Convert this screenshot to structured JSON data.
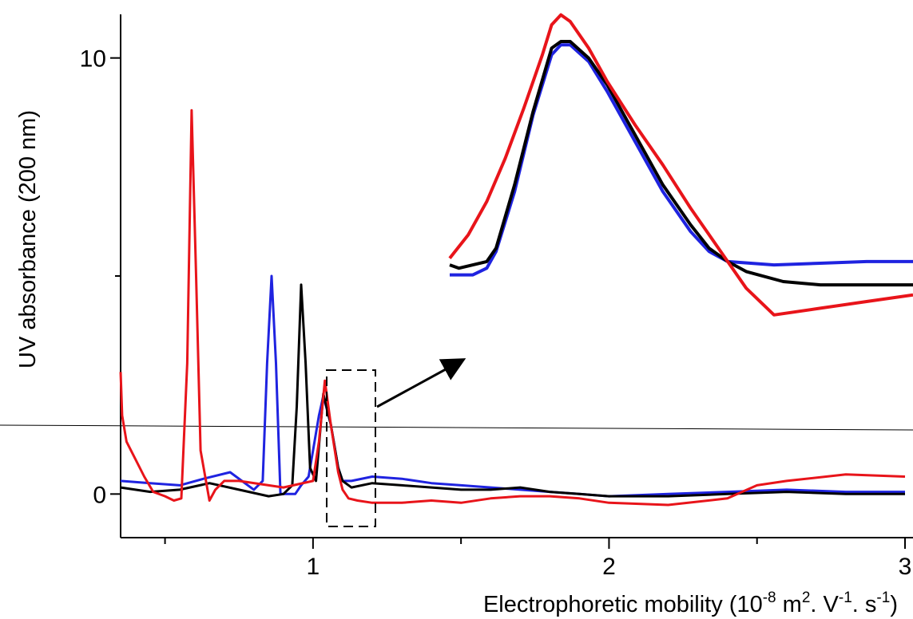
{
  "chart_data": {
    "type": "line",
    "title": "",
    "xlabel": {
      "base": "Electrophoretic mobility  (10",
      "exp1": "-8",
      "mid1": " m",
      "exp2": "2",
      "mid2": ". V",
      "exp3": "-1",
      "mid3": ". s",
      "exp4": "-1",
      "end": ")"
    },
    "ylabel": "UV absorbance (200 nm)",
    "xlim": [
      0.35,
      3.0
    ],
    "ylim": [
      -1.0,
      11.0
    ],
    "x_ticks": [
      {
        "value": 1,
        "label": "1"
      },
      {
        "value": 2,
        "label": "2"
      },
      {
        "value": 3,
        "label": "3"
      }
    ],
    "x_minor_ticks": [
      0.5,
      1.5,
      2.5
    ],
    "y_ticks": [
      {
        "value": 0,
        "label": "0"
      },
      {
        "value": 10,
        "label": "10"
      }
    ],
    "y_minor_ticks": [
      5
    ],
    "legend": "none",
    "colors": {
      "red": "#e8141a",
      "blue": "#1f23e0",
      "black": "#000000"
    },
    "series": [
      {
        "color": "#1f23e0",
        "x": [
          0.35,
          0.45,
          0.55,
          0.63,
          0.72,
          0.8,
          0.83,
          0.845,
          0.86,
          0.875,
          0.89,
          0.94,
          0.96,
          0.985,
          1.0,
          1.02,
          1.035,
          1.06,
          1.085,
          1.1,
          1.13,
          1.2,
          1.3,
          1.4,
          1.5,
          1.6,
          1.7,
          1.8,
          1.9,
          2.0,
          2.2,
          2.4,
          2.6,
          2.8,
          3.0
        ],
        "y": [
          0.3,
          0.25,
          0.2,
          0.35,
          0.5,
          0.1,
          0.3,
          3.0,
          5.0,
          3.0,
          0.0,
          0.0,
          0.2,
          0.4,
          1.0,
          1.8,
          2.25,
          1.6,
          0.6,
          0.3,
          0.3,
          0.4,
          0.35,
          0.25,
          0.2,
          0.15,
          0.1,
          0.05,
          0.0,
          -0.05,
          0.0,
          0.05,
          0.1,
          0.05,
          0.05
        ]
      },
      {
        "color": "#000000",
        "x": [
          0.35,
          0.45,
          0.55,
          0.65,
          0.75,
          0.85,
          0.9,
          0.93,
          0.945,
          0.96,
          0.975,
          0.99,
          1.01,
          1.035,
          1.06,
          1.085,
          1.1,
          1.13,
          1.2,
          1.3,
          1.4,
          1.5,
          1.6,
          1.7,
          1.8,
          1.9,
          2.0,
          2.2,
          2.4,
          2.6,
          2.8,
          3.0
        ],
        "y": [
          0.15,
          0.05,
          0.1,
          0.25,
          0.1,
          -0.05,
          0.0,
          0.2,
          2.0,
          4.8,
          3.0,
          0.6,
          0.3,
          2.3,
          1.6,
          0.6,
          0.3,
          0.15,
          0.25,
          0.2,
          0.15,
          0.1,
          0.1,
          0.15,
          0.05,
          0.0,
          -0.05,
          -0.05,
          0.0,
          0.05,
          0.0,
          0.0
        ]
      },
      {
        "color": "#e8141a",
        "x": [
          0.35,
          0.355,
          0.37,
          0.4,
          0.43,
          0.46,
          0.5,
          0.53,
          0.555,
          0.575,
          0.59,
          0.605,
          0.62,
          0.65,
          0.67,
          0.7,
          0.75,
          0.85,
          0.9,
          1.0,
          1.02,
          1.04,
          1.06,
          1.085,
          1.1,
          1.12,
          1.15,
          1.2,
          1.3,
          1.4,
          1.5,
          1.6,
          1.7,
          1.8,
          1.9,
          2.0,
          2.2,
          2.4,
          2.5,
          2.6,
          2.8,
          3.0
        ],
        "y": [
          2.8,
          1.8,
          1.2,
          0.8,
          0.4,
          0.05,
          -0.05,
          -0.15,
          -0.1,
          3.0,
          8.8,
          5.0,
          1.0,
          -0.15,
          0.1,
          0.3,
          0.3,
          0.2,
          0.15,
          0.3,
          1.2,
          2.6,
          1.6,
          0.5,
          0.1,
          -0.1,
          -0.15,
          -0.2,
          -0.2,
          -0.15,
          -0.2,
          -0.1,
          -0.05,
          -0.05,
          -0.1,
          -0.2,
          -0.25,
          -0.1,
          0.2,
          0.3,
          0.45,
          0.4
        ]
      }
    ],
    "inset": {
      "source_range_x": [
        1.0,
        1.17
      ],
      "source_range_y": [
        -0.2,
        2.9
      ],
      "series": [
        {
          "color": "#1f23e0",
          "x": [
            0,
            0.05,
            0.08,
            0.1,
            0.14,
            0.18,
            0.22,
            0.24,
            0.26,
            0.3,
            0.34,
            0.4,
            0.46,
            0.52,
            0.56,
            0.6,
            0.7,
            0.8,
            0.9,
            1.0
          ],
          "y": [
            0.3,
            0.3,
            0.32,
            0.37,
            0.55,
            0.78,
            0.96,
            0.99,
            0.99,
            0.94,
            0.85,
            0.7,
            0.55,
            0.43,
            0.37,
            0.34,
            0.33,
            0.335,
            0.34,
            0.34
          ]
        },
        {
          "color": "#000000",
          "x": [
            0,
            0.02,
            0.08,
            0.1,
            0.14,
            0.18,
            0.22,
            0.24,
            0.26,
            0.3,
            0.34,
            0.4,
            0.46,
            0.52,
            0.56,
            0.6,
            0.64,
            0.72,
            0.8,
            0.9,
            1.0
          ],
          "y": [
            0.33,
            0.32,
            0.34,
            0.38,
            0.57,
            0.79,
            0.98,
            1.0,
            1.0,
            0.95,
            0.87,
            0.72,
            0.57,
            0.45,
            0.38,
            0.34,
            0.31,
            0.28,
            0.27,
            0.27,
            0.27
          ]
        },
        {
          "color": "#e8141a",
          "x": [
            0,
            0.04,
            0.08,
            0.12,
            0.16,
            0.18,
            0.2,
            0.22,
            0.24,
            0.26,
            0.3,
            0.34,
            0.4,
            0.46,
            0.52,
            0.56,
            0.6,
            0.64,
            0.7,
            0.8,
            0.9,
            1.0
          ],
          "y": [
            0.35,
            0.42,
            0.52,
            0.65,
            0.8,
            0.88,
            0.96,
            1.05,
            1.08,
            1.06,
            0.98,
            0.88,
            0.75,
            0.63,
            0.5,
            0.42,
            0.34,
            0.26,
            0.18,
            0.2,
            0.22,
            0.24
          ]
        }
      ]
    }
  }
}
